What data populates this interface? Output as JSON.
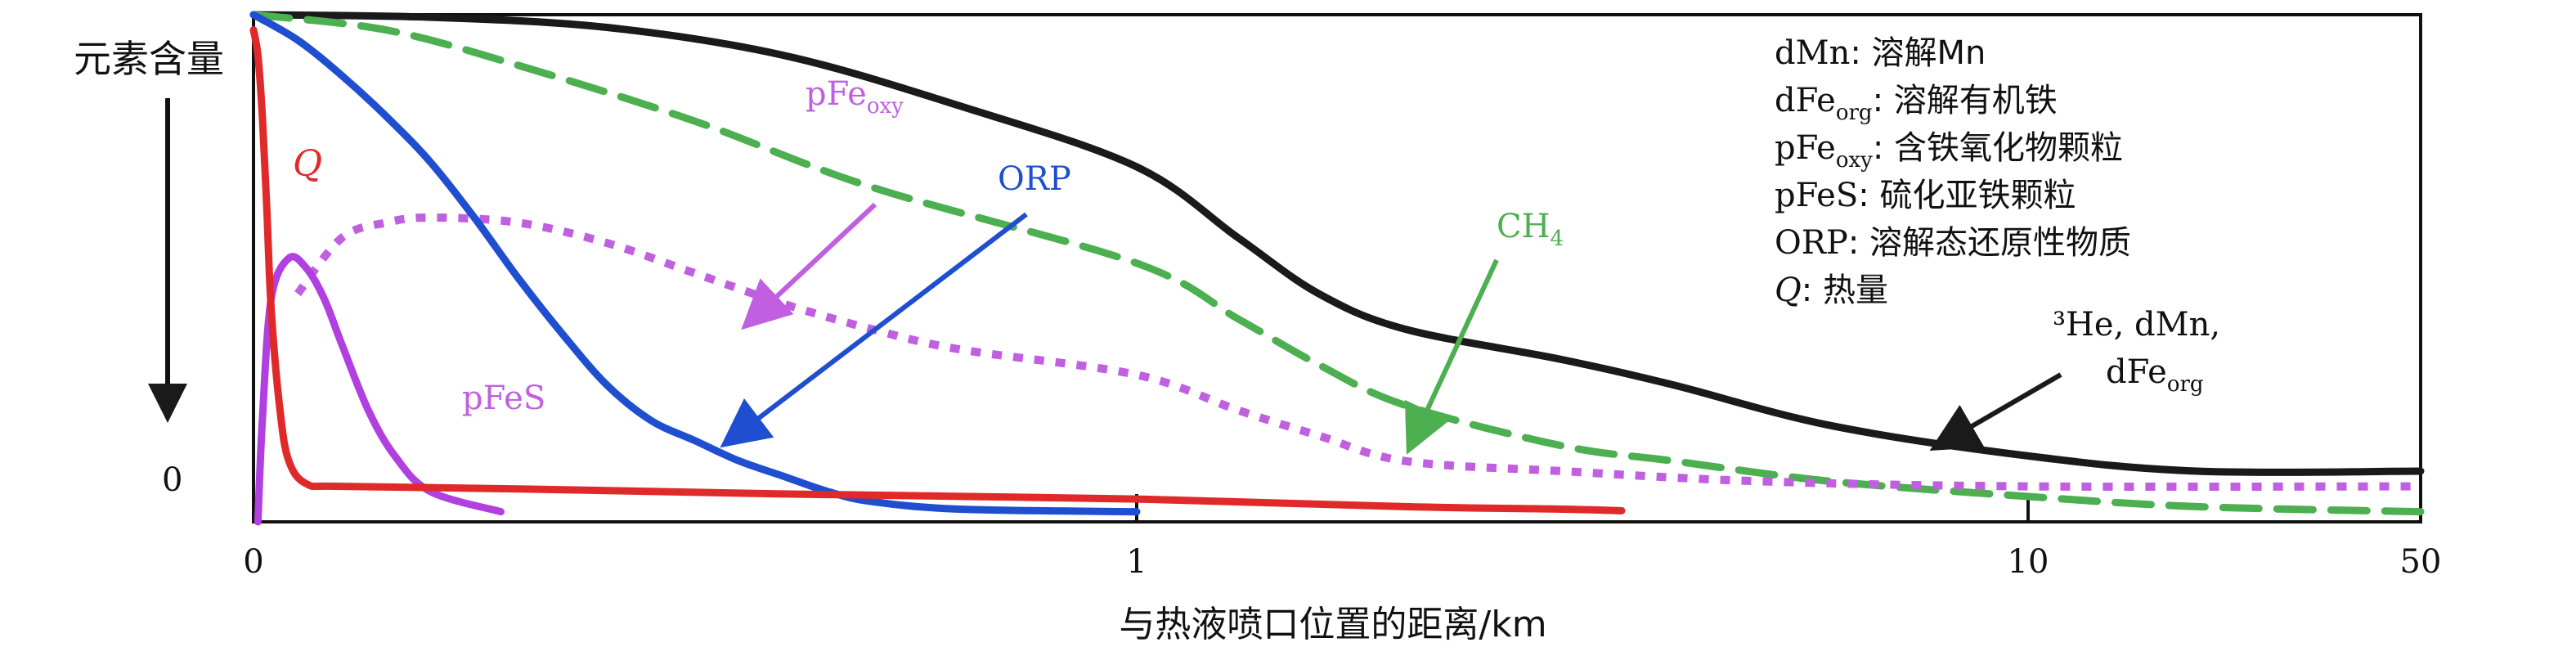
{
  "chart_data": {
    "type": "line",
    "xlabel": "与热液喷口位置的距离/km",
    "ylabel": "元素含量",
    "y_zero_label": "0",
    "x_ticks": [
      {
        "label": "0",
        "km": 0
      },
      {
        "label": "1",
        "km": 1
      },
      {
        "label": "10",
        "km": 10
      },
      {
        "label": "50",
        "km": 50
      }
    ],
    "legend": {
      "placement": "top-right",
      "entries": [
        {
          "key": "dMn",
          "sub": "",
          "italic": false,
          "desc": ": 溶解Mn"
        },
        {
          "key": "dFe",
          "sub": "org",
          "italic": false,
          "desc": ": 溶解有机铁"
        },
        {
          "key": "pFe",
          "sub": "oxy",
          "italic": false,
          "desc": ": 含铁氧化物颗粒"
        },
        {
          "key": "pFeS",
          "sub": "",
          "italic": false,
          "desc": ": 硫化亚铁颗粒"
        },
        {
          "key": "ORP",
          "sub": "",
          "italic": false,
          "desc": ": 溶解态还原性物质"
        },
        {
          "key": "Q",
          "sub": "",
          "italic": true,
          "desc": ": 热量"
        }
      ]
    },
    "series": [
      {
        "name": "³He, dMn, dFe_org",
        "color": "#1a1a1a",
        "style": "solid",
        "points": [
          [
            0,
            1.0
          ],
          [
            0.2,
            0.995
          ],
          [
            0.4,
            0.975
          ],
          [
            0.6,
            0.92
          ],
          [
            0.8,
            0.82
          ],
          [
            1.0,
            0.7
          ],
          [
            1.3,
            0.56
          ],
          [
            1.6,
            0.45
          ],
          [
            2,
            0.38
          ],
          [
            3,
            0.32
          ],
          [
            4,
            0.27
          ],
          [
            6,
            0.19
          ],
          [
            10,
            0.13
          ],
          [
            20,
            0.1
          ],
          [
            50,
            0.1
          ]
        ]
      },
      {
        "name": "CH4",
        "color": "#4caf50",
        "style": "dashed",
        "points": [
          [
            0,
            1.0
          ],
          [
            0.15,
            0.97
          ],
          [
            0.3,
            0.9
          ],
          [
            0.5,
            0.79
          ],
          [
            0.7,
            0.66
          ],
          [
            1.0,
            0.51
          ],
          [
            1.3,
            0.4
          ],
          [
            1.6,
            0.31
          ],
          [
            2,
            0.23
          ],
          [
            3,
            0.15
          ],
          [
            4,
            0.12
          ],
          [
            6,
            0.08
          ],
          [
            10,
            0.05
          ],
          [
            20,
            0.03
          ],
          [
            50,
            0.02
          ]
        ]
      },
      {
        "name": "pFe_oxy",
        "color": "#c060e0",
        "style": "dotted",
        "points": [
          [
            0.05,
            0.45
          ],
          [
            0.1,
            0.56
          ],
          [
            0.15,
            0.59
          ],
          [
            0.2,
            0.6
          ],
          [
            0.3,
            0.59
          ],
          [
            0.4,
            0.55
          ],
          [
            0.5,
            0.49
          ],
          [
            0.6,
            0.43
          ],
          [
            0.7,
            0.38
          ],
          [
            0.8,
            0.34
          ],
          [
            1.0,
            0.29
          ],
          [
            1.3,
            0.22
          ],
          [
            1.6,
            0.17
          ],
          [
            2,
            0.12
          ],
          [
            3,
            0.1
          ],
          [
            5,
            0.08
          ],
          [
            10,
            0.07
          ],
          [
            50,
            0.07
          ]
        ]
      },
      {
        "name": "ORP",
        "color": "#1f4fd0",
        "style": "solid",
        "points": [
          [
            0,
            1.0
          ],
          [
            0.05,
            0.95
          ],
          [
            0.1,
            0.88
          ],
          [
            0.15,
            0.8
          ],
          [
            0.2,
            0.71
          ],
          [
            0.25,
            0.6
          ],
          [
            0.3,
            0.48
          ],
          [
            0.35,
            0.37
          ],
          [
            0.4,
            0.27
          ],
          [
            0.45,
            0.2
          ],
          [
            0.5,
            0.16
          ],
          [
            0.55,
            0.12
          ],
          [
            0.6,
            0.09
          ],
          [
            0.65,
            0.06
          ],
          [
            0.7,
            0.04
          ],
          [
            0.8,
            0.025
          ],
          [
            1.0,
            0.02
          ]
        ]
      },
      {
        "name": "pFeS",
        "color": "#b040e0",
        "style": "solid",
        "points": [
          [
            0.005,
            0.0
          ],
          [
            0.01,
            0.2
          ],
          [
            0.02,
            0.44
          ],
          [
            0.04,
            0.52
          ],
          [
            0.06,
            0.5
          ],
          [
            0.08,
            0.44
          ],
          [
            0.1,
            0.35
          ],
          [
            0.13,
            0.22
          ],
          [
            0.16,
            0.13
          ],
          [
            0.2,
            0.06
          ],
          [
            0.28,
            0.02
          ]
        ]
      },
      {
        "name": "Q",
        "color": "#e02a2a",
        "style": "solid",
        "points": [
          [
            0,
            0.97
          ],
          [
            0.005,
            0.92
          ],
          [
            0.01,
            0.8
          ],
          [
            0.015,
            0.62
          ],
          [
            0.02,
            0.42
          ],
          [
            0.03,
            0.22
          ],
          [
            0.04,
            0.12
          ],
          [
            0.06,
            0.075
          ],
          [
            0.1,
            0.07
          ],
          [
            0.3,
            0.065
          ],
          [
            0.6,
            0.055
          ],
          [
            1.0,
            0.045
          ],
          [
            2,
            0.03
          ],
          [
            3,
            0.025
          ],
          [
            3.5,
            0.022
          ]
        ]
      }
    ],
    "annotations": [
      {
        "series": "pFe_oxy",
        "text": "pFe",
        "sub": "oxy",
        "italic": false
      },
      {
        "series": "ORP",
        "text": "ORP",
        "sub": "",
        "italic": false
      },
      {
        "series": "CH4",
        "text": "CH",
        "sub": "4",
        "italic": false
      },
      {
        "series": "³He, dMn, dFe_org",
        "text": "³He, dMn,",
        "text2": "dFe",
        "sub2": "org",
        "italic": false
      },
      {
        "series": "pFeS",
        "text": "pFeS",
        "sub": "",
        "italic": false
      },
      {
        "series": "Q",
        "text": "Q",
        "sub": "",
        "italic": true
      }
    ]
  }
}
